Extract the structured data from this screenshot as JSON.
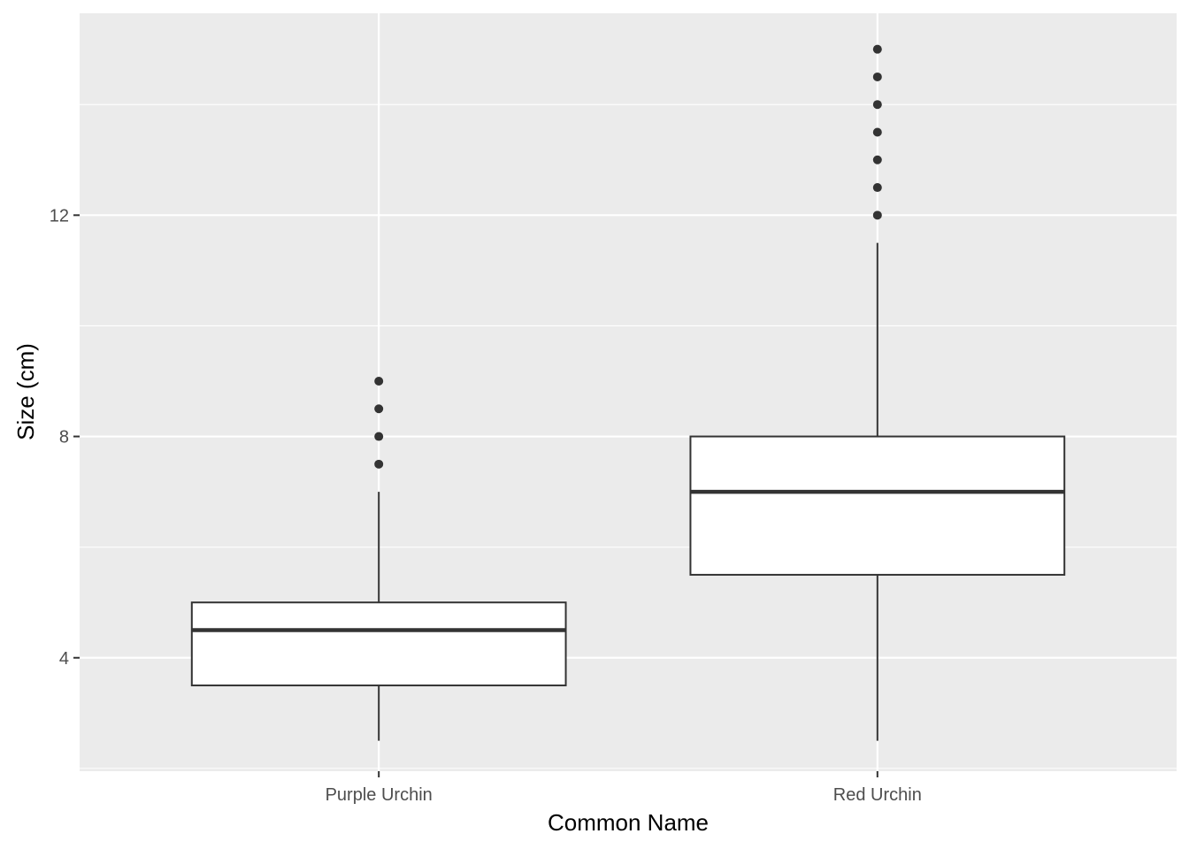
{
  "chart_data": {
    "type": "boxplot",
    "title": "",
    "xlabel": "Common Name",
    "ylabel": "Size (cm)",
    "categories": [
      "Purple Urchin",
      "Red Urchin"
    ],
    "ylim": [
      1.95,
      15.65
    ],
    "yticks": [
      4,
      8,
      12
    ],
    "grid": true,
    "legend": "none",
    "boxes": [
      {
        "category": "Purple Urchin",
        "lower_whisker": 2.5,
        "q1": 3.5,
        "median": 4.5,
        "q3": 5,
        "upper_whisker": 7,
        "outliers": [
          7.5,
          8,
          8.5,
          9
        ]
      },
      {
        "category": "Red Urchin",
        "lower_whisker": 2.5,
        "q1": 5.5,
        "median": 7,
        "q3": 8,
        "upper_whisker": 11.5,
        "outliers": [
          12,
          12.5,
          13,
          13.5,
          14,
          14.5,
          15
        ]
      }
    ],
    "colors": {
      "panel_background": "#ebebeb",
      "grid": "#ffffff",
      "box_fill": "#ffffff",
      "box_line": "#333333",
      "outlier": "#333333"
    }
  }
}
